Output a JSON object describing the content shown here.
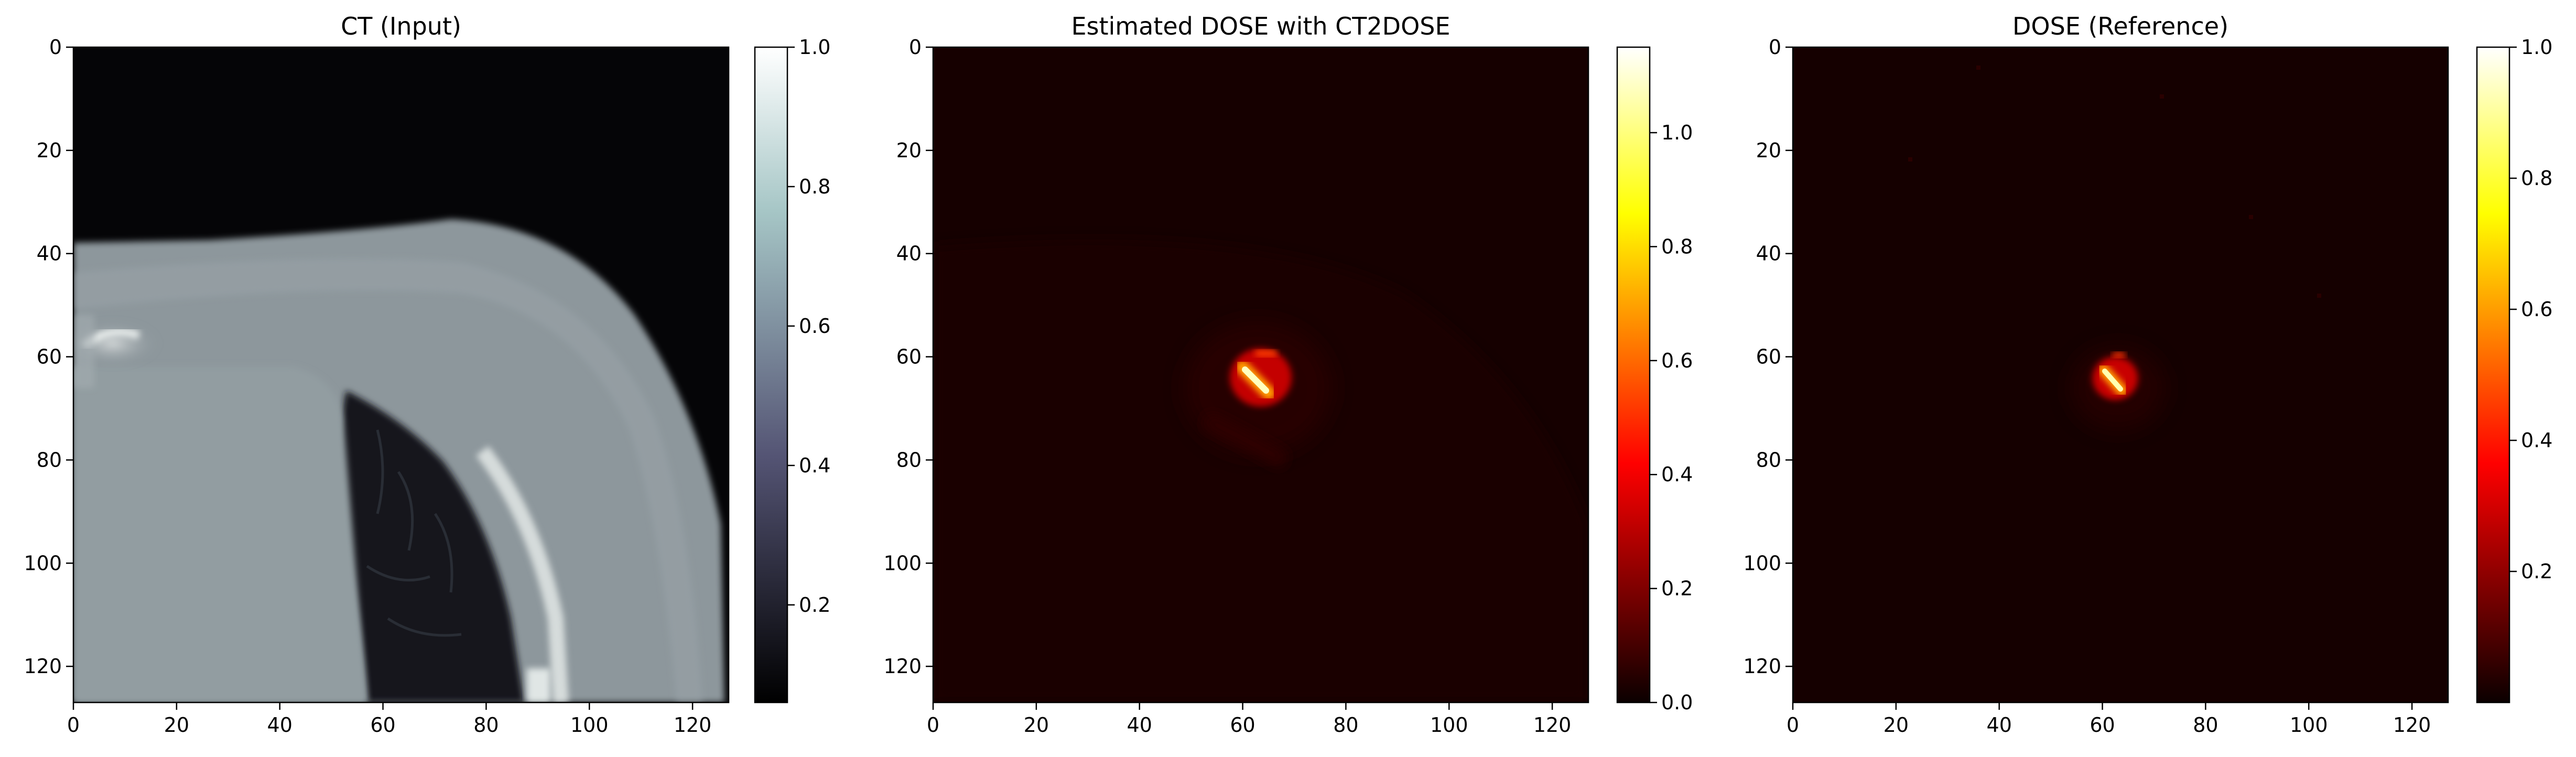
{
  "figure": {
    "background": "#ffffff"
  },
  "chart_data": [
    {
      "type": "heatmap",
      "title": "CT (Input)",
      "colormap": "bone",
      "x_ticks": [
        0,
        20,
        40,
        60,
        80,
        100,
        120
      ],
      "y_ticks": [
        0,
        20,
        40,
        60,
        80,
        100,
        120
      ],
      "xlim": [
        0,
        127
      ],
      "ylim": [
        127,
        0
      ],
      "colorbar": {
        "range": [
          0.06,
          1.0
        ],
        "ticks": [
          0.2,
          0.4,
          0.6,
          0.8,
          1.0
        ]
      },
      "image_features": [
        "dark air above a curved body contour",
        "bright spot near x 0-18, y 54-68",
        "uniform soft tissue in the lower-left",
        "dark lung region from about x 52-90, y 67-127",
        "bright curved rib/bone near x 80-100, y 80-127"
      ]
    },
    {
      "type": "heatmap",
      "title": "Estimated DOSE with CT2DOSE",
      "colormap": "hot",
      "x_ticks": [
        0,
        20,
        40,
        60,
        80,
        100,
        120
      ],
      "y_ticks": [
        0,
        20,
        40,
        60,
        80,
        100,
        120
      ],
      "xlim": [
        0,
        127
      ],
      "ylim": [
        127,
        0
      ],
      "colorbar": {
        "range": [
          0.0,
          1.15
        ],
        "ticks": [
          0.0,
          0.2,
          0.4,
          0.6,
          0.8,
          1.0
        ]
      },
      "hotspot": {
        "center": [
          63,
          64
        ],
        "peak": 1.1
      }
    },
    {
      "type": "heatmap",
      "title": "DOSE (Reference)",
      "colormap": "hot",
      "x_ticks": [
        0,
        20,
        40,
        60,
        80,
        100,
        120
      ],
      "y_ticks": [
        0,
        20,
        40,
        60,
        80,
        100,
        120
      ],
      "xlim": [
        0,
        127
      ],
      "ylim": [
        127,
        0
      ],
      "colorbar": {
        "range": [
          0.0,
          1.0
        ],
        "ticks": [
          0.2,
          0.4,
          0.6,
          0.8,
          1.0
        ]
      },
      "hotspot": {
        "center": [
          62,
          64
        ],
        "peak": 1.0
      }
    }
  ]
}
